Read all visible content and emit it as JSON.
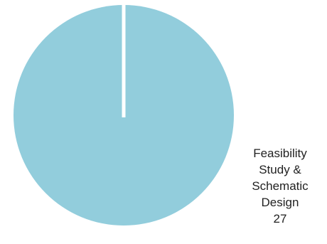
{
  "chart_data": {
    "type": "pie",
    "slices": [
      {
        "label_lines": [
          "Feasibility",
          "Study &",
          "Schematic",
          "Design"
        ],
        "value": 27,
        "value_label": "27",
        "color": "#92CDDC"
      }
    ],
    "separator_color": "#FFFFFF"
  }
}
